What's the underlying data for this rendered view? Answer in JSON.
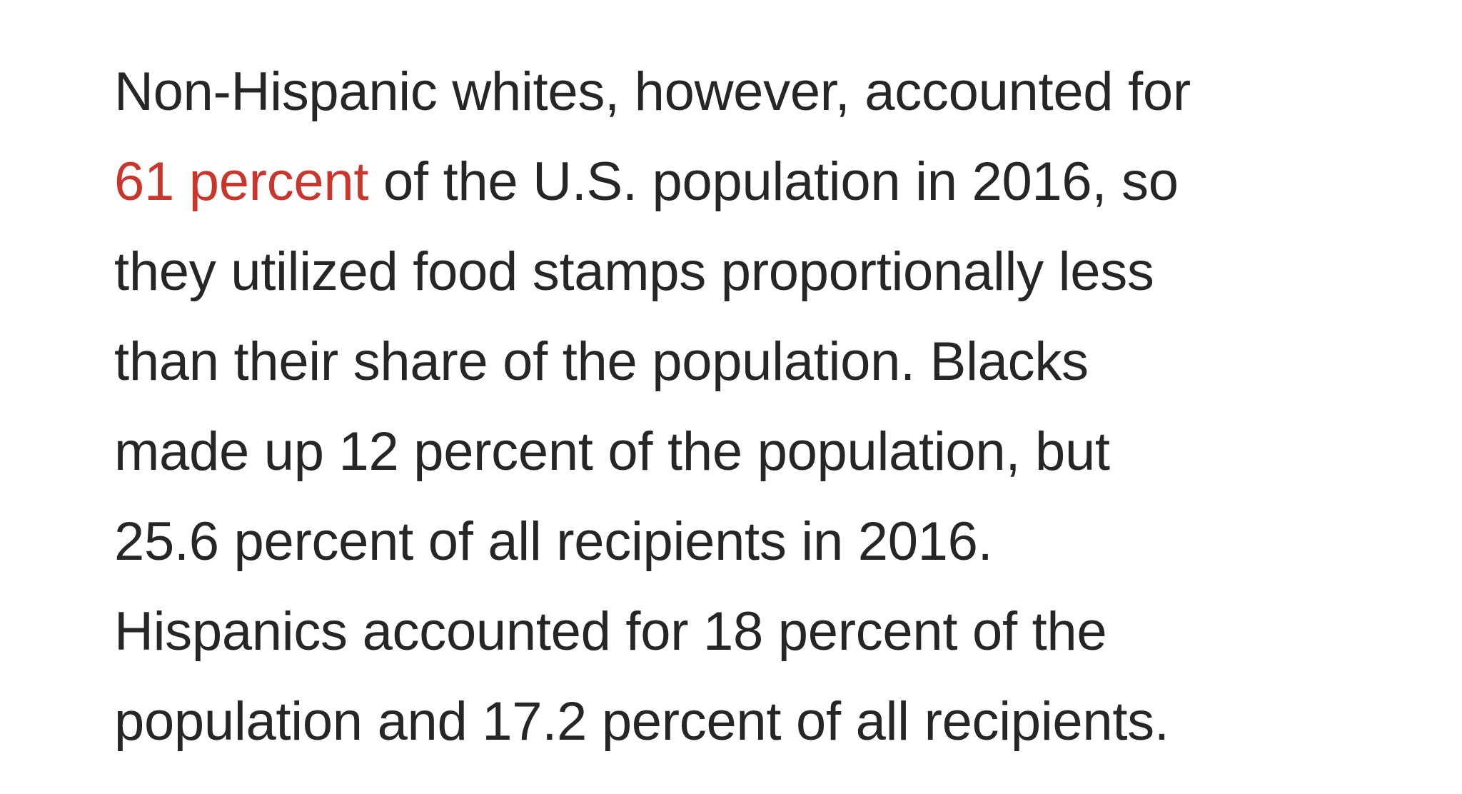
{
  "article": {
    "paragraph": {
      "line_1": "Non-Hispanic whites, however, accounted for",
      "line_2_link": "61 percent",
      "line_2_rest": " of the U.S. population in 2016, so",
      "line_3": "they utilized food stamps proportionally less",
      "line_4": "than their share of the population. Blacks",
      "line_5": "made up 12 percent of the population, but",
      "line_6": "25.6 percent of all recipients in 2016.",
      "line_7": "Hispanics accounted for 18 percent of the",
      "line_8": "population and 17.2 percent of all recipients."
    }
  },
  "colors": {
    "text": "#262626",
    "link": "#c9372c",
    "background": "#ffffff"
  }
}
